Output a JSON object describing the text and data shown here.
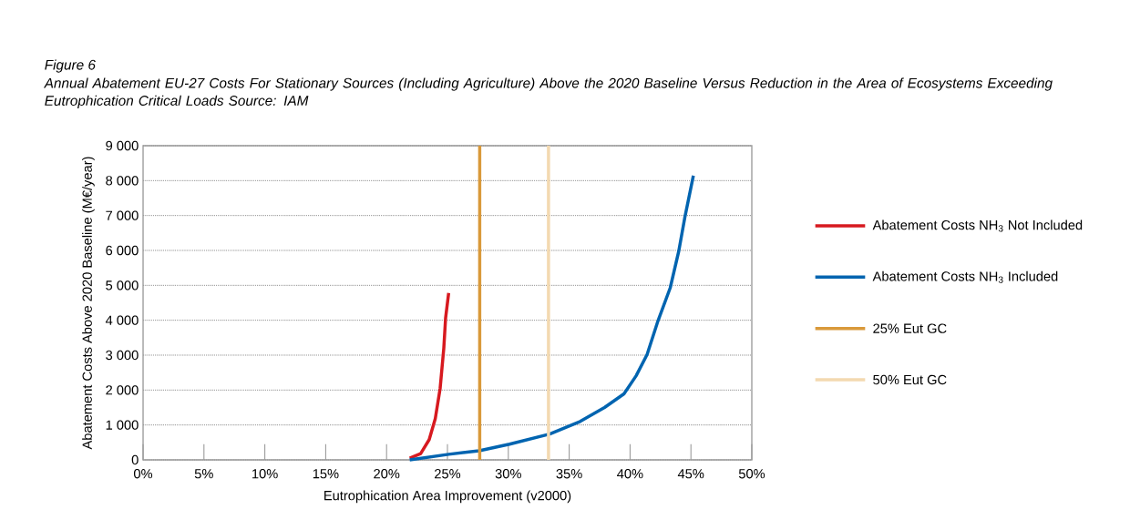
{
  "chart_data": {
    "type": "line",
    "title": "Figure 6",
    "subtitle": "Annual Abatement EU-27 Costs For Stationary Sources (Including Agriculture) Above the 2020 Baseline Versus Reduction in the Area of Ecosystems Exceeding Eutrophication Critical Loads Source: IAM",
    "xlabel": "Eutrophication Area Improvement (v2000)",
    "ylabel": "Abatement Costs Above 2020 Baseline (M€/year)",
    "xlim": [
      0,
      50
    ],
    "ylim": [
      0,
      9000
    ],
    "xticks": [
      {
        "value": 0,
        "label": "0%"
      },
      {
        "value": 5,
        "label": "5%"
      },
      {
        "value": 10,
        "label": "10%"
      },
      {
        "value": 15,
        "label": "15%"
      },
      {
        "value": 20,
        "label": "20%"
      },
      {
        "value": 25,
        "label": "25%"
      },
      {
        "value": 30,
        "label": "30%"
      },
      {
        "value": 35,
        "label": "35%"
      },
      {
        "value": 40,
        "label": "40%"
      },
      {
        "value": 45,
        "label": "45%"
      },
      {
        "value": 50,
        "label": "50%"
      }
    ],
    "yticks": [
      {
        "value": 0,
        "label": "0"
      },
      {
        "value": 1000,
        "label": "1 000"
      },
      {
        "value": 2000,
        "label": "2 000"
      },
      {
        "value": 3000,
        "label": "3 000"
      },
      {
        "value": 4000,
        "label": "4 000"
      },
      {
        "value": 5000,
        "label": "5 000"
      },
      {
        "value": 6000,
        "label": "6 000"
      },
      {
        "value": 7000,
        "label": "7 000"
      },
      {
        "value": 8000,
        "label": "8 000"
      },
      {
        "value": 9000,
        "label": "9 000"
      }
    ],
    "grid": "y",
    "legend": "right",
    "marker": "none",
    "line_style": "solid",
    "series": [
      {
        "name": "Abatement Costs NH$_{3}$ Not Included",
        "color": "#d7191f",
        "x": [
          21.9,
          22.8,
          23.5,
          24.0,
          24.4,
          24.7,
          24.85,
          25.1
        ],
        "values": [
          50,
          180,
          580,
          1180,
          2050,
          3200,
          4070,
          4780
        ]
      },
      {
        "name": "Abatement Costs NH$_{3}$ Included",
        "color": "#0064b0",
        "x": [
          21.9,
          25.1,
          27.6,
          30.1,
          33.4,
          35.9,
          37.9,
          39.5,
          40.5,
          41.4,
          42.3,
          43.3,
          44.0,
          44.5,
          45.2
        ],
        "values": [
          0,
          160,
          260,
          450,
          740,
          1100,
          1500,
          1890,
          2410,
          3020,
          3990,
          4930,
          5980,
          6950,
          8140
        ]
      },
      {
        "name": "25% Eut GC",
        "color": "#d9993a",
        "x": [
          27.65,
          27.65
        ],
        "values": [
          0,
          9000
        ]
      },
      {
        "name": "50% Eut GC",
        "color": "#f3d9b0",
        "x": [
          33.3,
          33.3
        ],
        "values": [
          0,
          9000
        ]
      }
    ]
  }
}
